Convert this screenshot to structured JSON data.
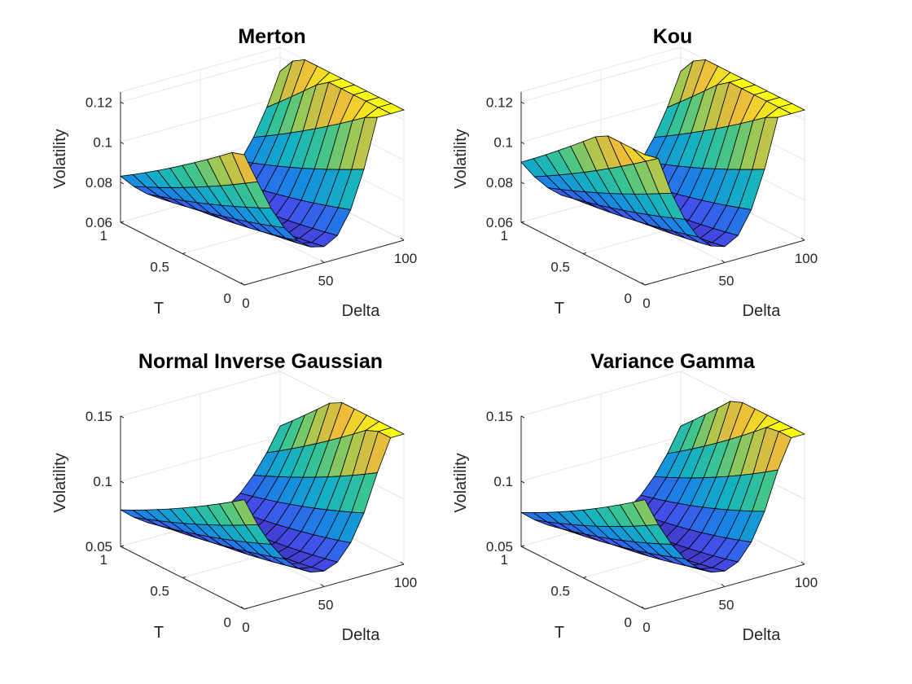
{
  "figure": {
    "colors": {
      "axis": "#262626",
      "grid": "#e6e6e6",
      "mesh": "#000000"
    },
    "colormap": "parula"
  },
  "chart_data": [
    {
      "type": "surface3d",
      "title": "Merton",
      "xlabel": "Delta",
      "ylabel": "T",
      "zlabel": "Volatility",
      "xlim": [
        0,
        100
      ],
      "ylim": [
        0,
        1
      ],
      "zlim": [
        0.06,
        0.125
      ],
      "xticks": [
        {
          "v": 0,
          "label": "0"
        },
        {
          "v": 50,
          "label": "50"
        },
        {
          "v": 100,
          "label": "100"
        }
      ],
      "yticks": [
        {
          "v": 0,
          "label": "0"
        },
        {
          "v": 0.5,
          "label": "0.5"
        },
        {
          "v": 1,
          "label": "1"
        }
      ],
      "zticks": [
        {
          "v": 0.06,
          "label": "0.06"
        },
        {
          "v": 0.08,
          "label": "0.08"
        },
        {
          "v": 0.1,
          "label": "0.1"
        },
        {
          "v": 0.12,
          "label": "0.12"
        }
      ],
      "grid": true,
      "surface": {
        "atm": 0.062,
        "left_wing": 0.025,
        "right_wing": 0.055,
        "short_extra": 0.006,
        "ceiling": 0.125
      }
    },
    {
      "type": "surface3d",
      "title": "Kou",
      "xlabel": "Delta",
      "ylabel": "T",
      "zlabel": "Volatility",
      "xlim": [
        0,
        100
      ],
      "ylim": [
        0,
        1
      ],
      "zlim": [
        0.06,
        0.125
      ],
      "xticks": [
        {
          "v": 0,
          "label": "0"
        },
        {
          "v": 50,
          "label": "50"
        },
        {
          "v": 100,
          "label": "100"
        }
      ],
      "yticks": [
        {
          "v": 0,
          "label": "0"
        },
        {
          "v": 0.5,
          "label": "0.5"
        },
        {
          "v": 1,
          "label": "1"
        }
      ],
      "zticks": [
        {
          "v": 0.06,
          "label": "0.06"
        },
        {
          "v": 0.08,
          "label": "0.08"
        },
        {
          "v": 0.1,
          "label": "0.1"
        },
        {
          "v": 0.12,
          "label": "0.12"
        }
      ],
      "grid": true,
      "surface": {
        "atm": 0.062,
        "left_wing": 0.032,
        "right_wing": 0.055,
        "short_extra": 0.006,
        "ceiling": 0.125
      }
    },
    {
      "type": "surface3d",
      "title": "Normal Inverse Gaussian",
      "xlabel": "Delta",
      "ylabel": "T",
      "zlabel": "Volatility",
      "xlim": [
        0,
        100
      ],
      "ylim": [
        0,
        1
      ],
      "zlim": [
        0.05,
        0.15
      ],
      "xticks": [
        {
          "v": 0,
          "label": "0"
        },
        {
          "v": 50,
          "label": "50"
        },
        {
          "v": 100,
          "label": "100"
        }
      ],
      "yticks": [
        {
          "v": 0,
          "label": "0"
        },
        {
          "v": 0.5,
          "label": "0.5"
        },
        {
          "v": 1,
          "label": "1"
        }
      ],
      "zticks": [
        {
          "v": 0.05,
          "label": "0.05"
        },
        {
          "v": 0.1,
          "label": "0.1"
        },
        {
          "v": 0.15,
          "label": "0.15"
        }
      ],
      "grid": true,
      "surface": {
        "atm": 0.052,
        "left_wing": 0.03,
        "right_wing": 0.06,
        "short_extra": 0.01,
        "ceiling": 0.15
      }
    },
    {
      "type": "surface3d",
      "title": "Variance Gamma",
      "xlabel": "Delta",
      "ylabel": "T",
      "zlabel": "Volatility",
      "xlim": [
        0,
        100
      ],
      "ylim": [
        0,
        1
      ],
      "zlim": [
        0.05,
        0.15
      ],
      "xticks": [
        {
          "v": 0,
          "label": "0"
        },
        {
          "v": 50,
          "label": "50"
        },
        {
          "v": 100,
          "label": "100"
        }
      ],
      "yticks": [
        {
          "v": 0,
          "label": "0"
        },
        {
          "v": 0.5,
          "label": "0.5"
        },
        {
          "v": 1,
          "label": "1"
        }
      ],
      "zticks": [
        {
          "v": 0.05,
          "label": "0.05"
        },
        {
          "v": 0.1,
          "label": "0.1"
        },
        {
          "v": 0.15,
          "label": "0.15"
        }
      ],
      "grid": true,
      "surface": {
        "atm": 0.05,
        "left_wing": 0.03,
        "right_wing": 0.062,
        "short_extra": 0.012,
        "ceiling": 0.15
      }
    }
  ]
}
